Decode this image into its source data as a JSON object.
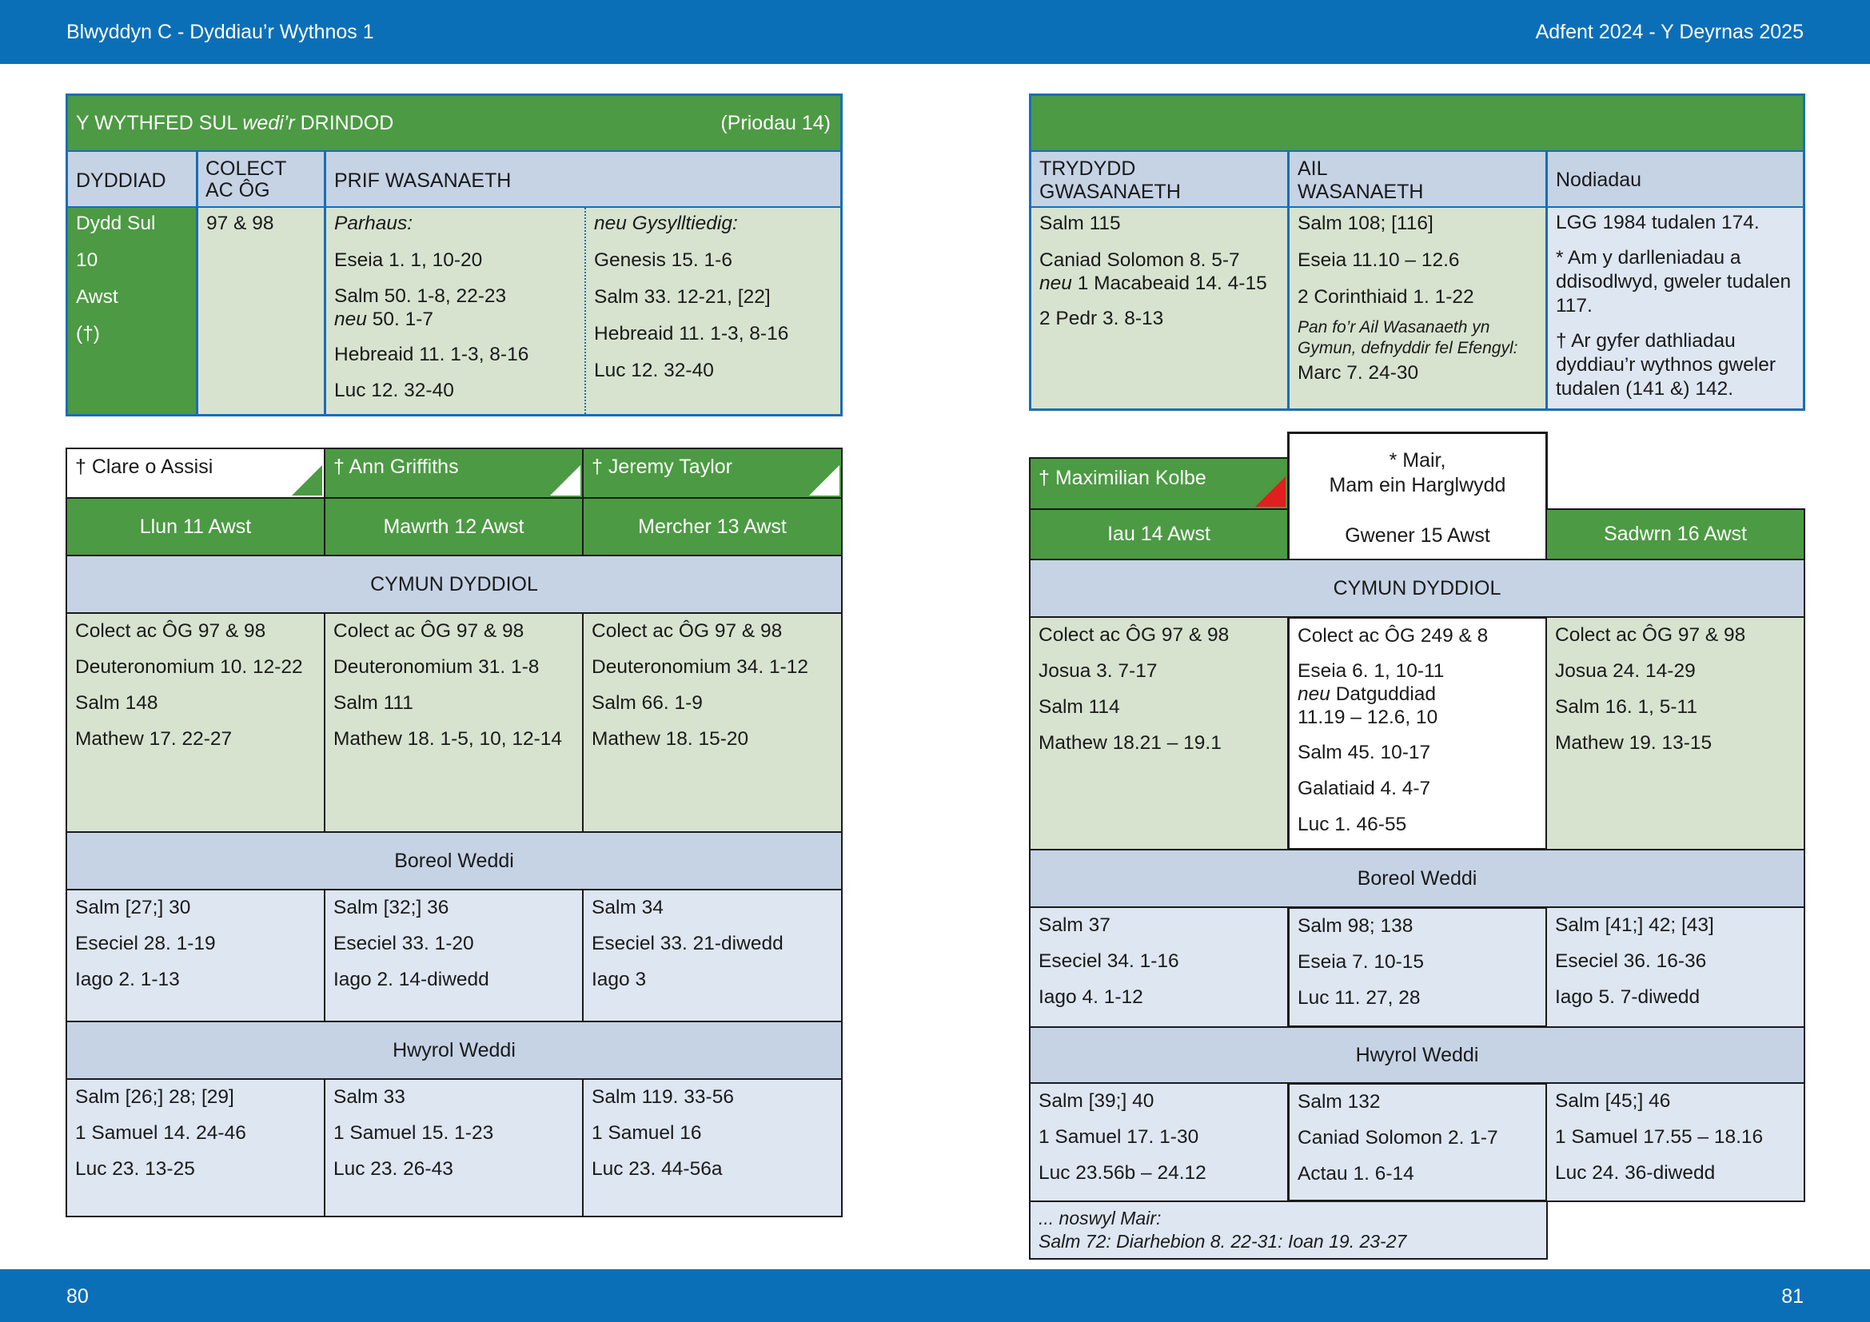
{
  "header": {
    "left": "Blwyddyn  C - Dyddiau’r Wythnos 1",
    "right": "Adfent  2024 - Y Deyrnas 2025"
  },
  "footer": {
    "left_page": "80",
    "right_page": "81"
  },
  "sunday": {
    "title_pre": "Y WYTHFED SUL ",
    "title_italic": "wedi’r",
    "title_post": " DRINDOD",
    "proper": "(Priodau 14)",
    "col_date": "DYDDIAD",
    "col_collect_1": "COLECT",
    "col_collect_2": "AC ÔG",
    "col_main": "PRIF WASANAETH",
    "date_lines": [
      "Dydd Sul",
      "10",
      "Awst",
      "(†)"
    ],
    "collect": "97 & 98",
    "continuous_label": "Parhaus:",
    "continuous": [
      "Eseia 1. 1, 10-20",
      "Salm 50. 1-8, 22-23",
      "50. 1-7",
      "Hebreaid 11. 1-3, 8-16",
      "Luc 12. 32-40"
    ],
    "neu": "neu",
    "related_label": "neu Gysylltiedig:",
    "related": [
      "Genesis 15. 1-6",
      "Salm 33. 12-21, [22]",
      "Hebreaid 11. 1-3, 8-16",
      "Luc 12. 32-40"
    ]
  },
  "sunday_right": {
    "col_third_1": "TRYDYDD",
    "col_third_2": "GWASANAETH",
    "col_second_1": "AIL",
    "col_second_2": "WASANAETH",
    "col_notes": "Nodiadau",
    "third": [
      "Salm 115",
      "Caniad Solomon 8. 5-7",
      "1 Macabeaid 14. 4-15",
      "2 Pedr 3. 8-13"
    ],
    "second": [
      "Salm 108; [116]",
      "Eseia 11.10 – 12.6",
      "2 Corinthiaid 1. 1-22"
    ],
    "second_note": "Pan fo’r Ail Wasanaeth yn Gymun, defnyddir fel Efengyl:",
    "second_gospel": "Marc 7. 24-30",
    "notes": [
      "LGG 1984 tudalen 174.",
      "* Am y darlleniadau a ddisodlwyd, gweler tudalen 117.",
      "† Ar gyfer dathliadau dyddiau’r wythnos gweler tudalen (141 &) 142."
    ]
  },
  "sections": {
    "eucharist": "CYMUN DYDDIOL",
    "morning": "Boreol Weddi",
    "evening": "Hwyrol Weddi"
  },
  "left_days": [
    {
      "saint": "† Clare o Assisi",
      "date": "Llun 11 Awst",
      "eucharist": [
        "Colect ac ÔG 97 & 98",
        "Deuteronomium 10. 12-22",
        "Salm 148",
        "Mathew 17. 22-27"
      ],
      "morning": [
        "Salm [27;] 30",
        "Eseciel 28. 1-19",
        "Iago 2. 1-13"
      ],
      "evening": [
        "Salm [26;] 28; [29]",
        "1 Samuel 14. 24-46",
        "Luc 23. 13-25"
      ]
    },
    {
      "saint": "† Ann Griffiths",
      "date": "Mawrth 12 Awst",
      "eucharist": [
        "Colect ac ÔG 97 & 98",
        "Deuteronomium 31. 1-8",
        "Salm 111",
        "Mathew 18. 1-5, 10, 12-14"
      ],
      "morning": [
        "Salm [32;] 36",
        "Eseciel 33. 1-20",
        "Iago 2. 14-diwedd"
      ],
      "evening": [
        "Salm 33",
        "1 Samuel 15. 1-23",
        "Luc 23. 26-43"
      ]
    },
    {
      "saint": "† Jeremy Taylor",
      "date": "Mercher 13 Awst",
      "eucharist": [
        "Colect ac ÔG 97 & 98",
        "Deuteronomium 34. 1-12",
        "Salm 66. 1-9",
        "Mathew 18. 15-20"
      ],
      "morning": [
        "Salm 34",
        "Eseciel 33. 21-diwedd",
        "Iago 3"
      ],
      "evening": [
        "Salm 119. 33-56",
        "1 Samuel 16",
        "Luc 23. 44-56a"
      ]
    }
  ],
  "right_days": [
    {
      "saint": "† Maximilian Kolbe",
      "date": "Iau 14 Awst",
      "eucharist": [
        "Colect ac ÔG 97 & 98",
        "Josua 3. 7-17",
        "Salm 114",
        "Mathew 18.21 – 19.1"
      ],
      "morning": [
        "Salm 37",
        "Eseciel 34. 1-16",
        "Iago 4. 1-12"
      ],
      "evening": [
        "Salm [39;] 40",
        "1 Samuel 17. 1-30",
        "Luc 23.56b – 24.12"
      ]
    },
    {
      "saint_1": "* Mair,",
      "saint_2": "Mam ein Harglwydd",
      "date": "Gwener 15 Awst",
      "eucharist_1": "Colect ac ÔG 249 & 8",
      "eucharist_2a": "Eseia 6. 1, 10-11",
      "eucharist_2b": "Datguddiad",
      "eucharist_2c": "11.19 – 12.6, 10",
      "eucharist_rest": [
        "Salm 45. 10-17",
        "Galatiaid 4. 4-7",
        "Luc 1. 46-55"
      ],
      "morning": [
        "Salm 98; 138",
        "Eseia 7. 10-15",
        "Luc 11. 27, 28"
      ],
      "evening": [
        "Salm 132",
        "Caniad Solomon 2. 1-7",
        "Actau 1. 6-14"
      ],
      "eve_label": "... noswyl Mair:",
      "eve_readings": "Salm 72:  Diarhebion 8. 22-31:  Ioan 19. 23-27"
    },
    {
      "date": "Sadwrn 16 Awst",
      "eucharist": [
        "Colect ac ÔG 97 & 98",
        "Josua 24. 14-29",
        "Salm 16. 1, 5-11",
        "Mathew 19. 13-15"
      ],
      "morning": [
        "Salm [41;] 42; [43]",
        "Eseciel 36. 16-36",
        "Iago 5. 7-diwedd"
      ],
      "evening": [
        "Salm [45;] 46",
        "1 Samuel 17.55 – 18.16",
        "Luc 24. 36-diwedd"
      ]
    }
  ],
  "colors": {
    "header_blue": "#0b6fb8",
    "green": "#4c9a43",
    "light_green": "#d7e3cf",
    "blue_band": "#c5d3e5",
    "light_blue": "#dde6f1",
    "red_marker": "#e02020"
  }
}
